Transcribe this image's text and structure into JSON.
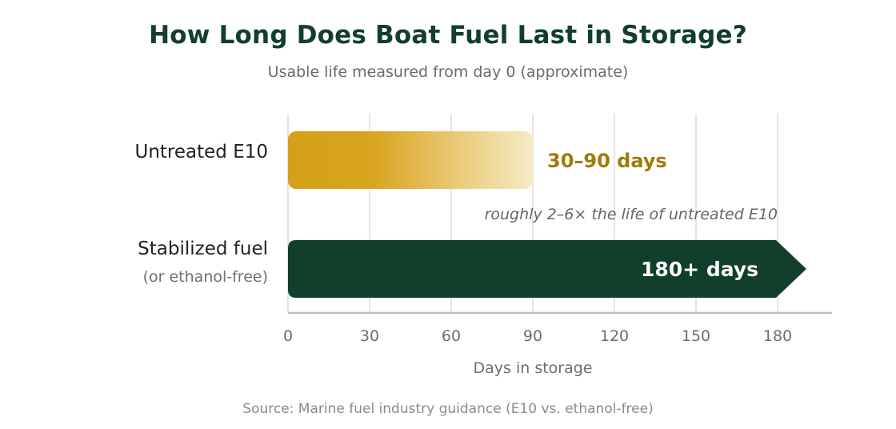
{
  "chart_data": {
    "type": "bar",
    "orientation": "horizontal",
    "title": "How Long Does Boat Fuel Last in Storage?",
    "subtitle": "Usable life measured from day 0 (approximate)",
    "xlabel": "Days in storage",
    "ylabel": "",
    "xlim": [
      0,
      190
    ],
    "xticks": [
      0,
      30,
      60,
      90,
      120,
      150,
      180
    ],
    "grid": true,
    "categories": [
      "Untreated E10",
      "Stabilized fuel"
    ],
    "category_sublabels": [
      "",
      "(or ethanol-free)"
    ],
    "bars": [
      {
        "category": "Untreated E10",
        "start": 0,
        "end": 90,
        "min_value": 30,
        "max_value": 90,
        "label": "30–90 days",
        "color": "#d4a017"
      },
      {
        "category": "Stabilized fuel",
        "start": 0,
        "end": 180,
        "min_value": 180,
        "open_ended": true,
        "label": "180+ days",
        "color": "#123e2c"
      }
    ],
    "annotation": "roughly 2–6× the life of untreated E10",
    "source": "Source: Marine fuel industry guidance (E10 vs. ethanol-free)"
  }
}
